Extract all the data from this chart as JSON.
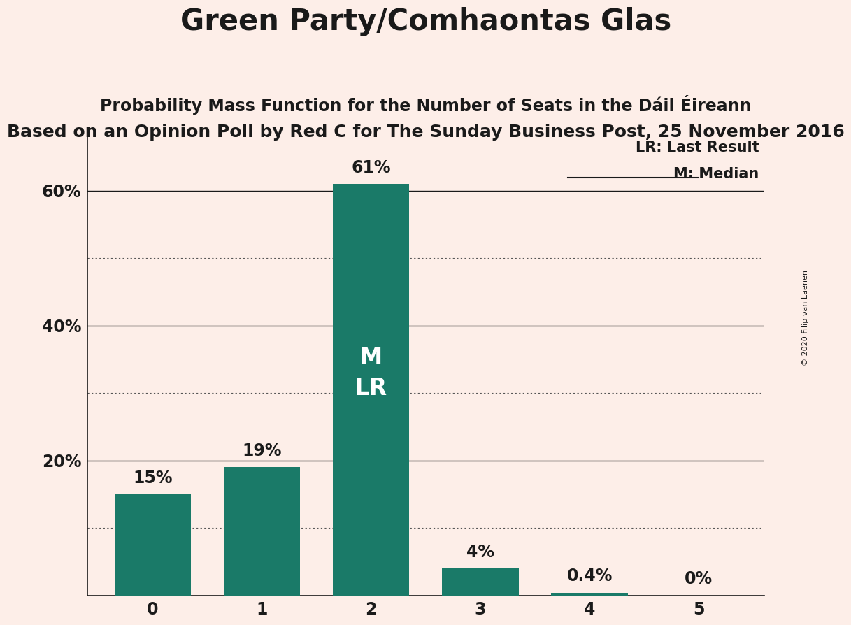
{
  "title": "Green Party/Comhaontas Glas",
  "subtitle1": "Probability Mass Function for the Number of Seats in the Dáil Éireann",
  "subtitle2": "Based on an Opinion Poll by Red C for The Sunday Business Post, 25 November 2016",
  "copyright": "© 2020 Filip van Laenen",
  "categories": [
    0,
    1,
    2,
    3,
    4,
    5
  ],
  "values": [
    15,
    19,
    61,
    4,
    0.4,
    0
  ],
  "labels": [
    "15%",
    "19%",
    "61%",
    "4%",
    "0.4%",
    "0%"
  ],
  "bar_color": "#1a7a68",
  "background_color": "#fdeee8",
  "ylim": [
    0,
    68
  ],
  "legend_lr": "LR: Last Result",
  "legend_m": "M: Median",
  "bar_label_inside": "M\nLR",
  "title_fontsize": 30,
  "subtitle1_fontsize": 17,
  "subtitle2_fontsize": 18,
  "label_fontsize": 17,
  "tick_fontsize": 17,
  "inside_label_fontsize": 24,
  "bar_width": 0.7
}
